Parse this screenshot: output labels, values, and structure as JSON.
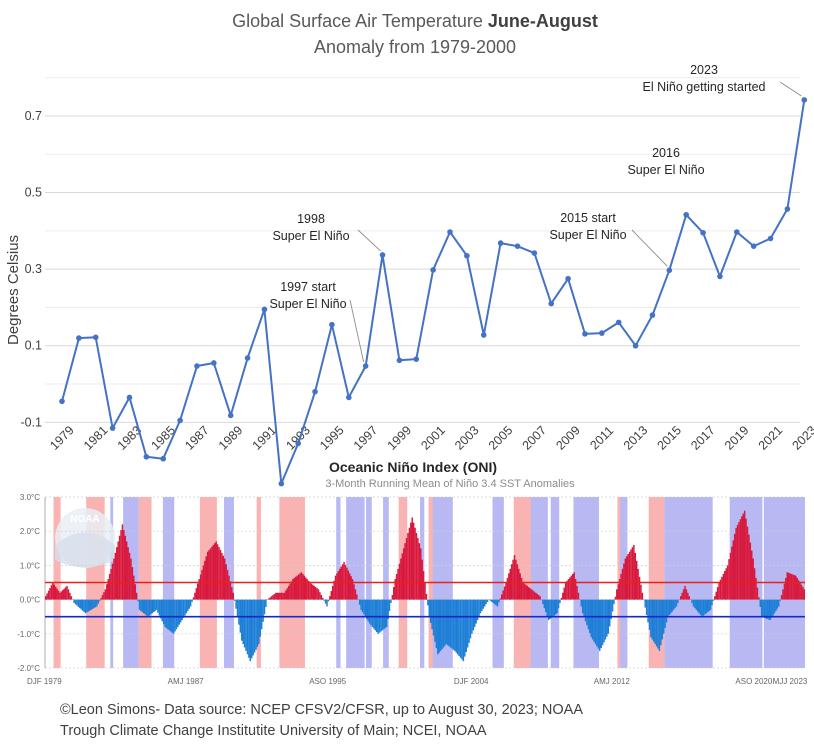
{
  "chart_data": [
    {
      "type": "line",
      "title_prefix": "Global Surface Air Temperature ",
      "title_bold": "June-August",
      "subtitle": "Anomaly from 1979-2000",
      "ylabel": "Degrees Celsius",
      "xlabel": "",
      "ylim": [
        -0.12,
        0.82
      ],
      "yticks": [
        -0.1,
        0.1,
        0.3,
        0.5,
        0.7
      ],
      "ytick_labels": [
        "-0.1",
        "0.1",
        "0.3",
        "0.5",
        "0.7"
      ],
      "xtick_labels": [
        "1979",
        "1981",
        "1983",
        "1985",
        "1987",
        "1989",
        "1991",
        "1993",
        "1995",
        "1997",
        "1999",
        "2001",
        "2003",
        "2005",
        "2007",
        "2009",
        "2011",
        "2013",
        "2015",
        "2017",
        "2019",
        "2021",
        "2023"
      ],
      "grid": true,
      "color": "#4472c4",
      "x": [
        1979,
        1980,
        1981,
        1982,
        1983,
        1984,
        1985,
        1986,
        1987,
        1988,
        1989,
        1990,
        1991,
        1992,
        1993,
        1994,
        1995,
        1996,
        1997,
        1998,
        1999,
        2000,
        2001,
        2002,
        2003,
        2004,
        2005,
        2006,
        2007,
        2008,
        2009,
        2010,
        2011,
        2012,
        2013,
        2014,
        2015,
        2016,
        2017,
        2018,
        2019,
        2020,
        2021,
        2022,
        2023
      ],
      "values": [
        -0.045,
        0.12,
        0.122,
        -0.115,
        -0.035,
        -0.19,
        -0.195,
        -0.095,
        0.047,
        0.055,
        -0.082,
        0.068,
        0.195,
        -0.26,
        -0.155,
        -0.02,
        0.155,
        -0.035,
        0.047,
        0.337,
        0.062,
        0.065,
        0.298,
        0.397,
        0.335,
        0.128,
        0.368,
        0.36,
        0.342,
        0.21,
        0.275,
        0.131,
        0.133,
        0.161,
        0.1,
        0.18,
        0.297,
        0.442,
        0.395,
        0.281,
        0.397,
        0.36,
        0.38,
        0.457,
        0.742
      ],
      "annotations": [
        {
          "lines": [
            "2023",
            "El Niño getting started"
          ],
          "year": 2023
        },
        {
          "lines": [
            "2016",
            "Super El Niño"
          ],
          "year": 2016
        },
        {
          "lines": [
            "2015 start",
            "Super El Niño"
          ],
          "year": 2015
        },
        {
          "lines": [
            "1998",
            "Super El Niño"
          ],
          "year": 1998
        },
        {
          "lines": [
            "1997 start",
            "Super El Niño"
          ],
          "year": 1997
        }
      ]
    },
    {
      "type": "bar",
      "title": "Oceanic Niño Index (ONI)",
      "subtitle": "3-Month Running Mean of Niño 3.4 SST Anomalies",
      "ylim": [
        -2.0,
        3.0
      ],
      "ytick_labels": [
        "3.0°C",
        "2.0°C",
        "1.0°C",
        "0.0°C",
        "-1.0°C",
        "-2.0°C"
      ],
      "yticks": [
        3,
        2,
        1,
        0,
        -1,
        -2
      ],
      "threshold_lines": [
        0.5,
        -0.5
      ],
      "threshold_colors": [
        "#e8211d",
        "#1528c8"
      ],
      "warm_color": "#d8183c",
      "cool_color": "#1d7fd6",
      "warm_band_color": "#f9b3b3",
      "cool_band_color": "#b8b8f3",
      "xtick_labels": [
        "DJF 1979",
        "AMJ 1987",
        "ASO 1995",
        "DJF 2004",
        "AMJ 2012",
        "ASO 2020",
        "MJJ 2023"
      ],
      "xtick_months": [
        0,
        99,
        199,
        300,
        399,
        499,
        532
      ],
      "n_months": 535,
      "logo_text": "NOAA",
      "knots": [
        [
          0,
          0.1
        ],
        [
          5,
          0.5
        ],
        [
          10,
          0.2
        ],
        [
          15,
          0.4
        ],
        [
          20,
          -0.1
        ],
        [
          28,
          -0.4
        ],
        [
          36,
          -0.2
        ],
        [
          42,
          0.3
        ],
        [
          48,
          1.2
        ],
        [
          54,
          2.2
        ],
        [
          60,
          1.2
        ],
        [
          66,
          -0.3
        ],
        [
          72,
          -0.5
        ],
        [
          78,
          -0.3
        ],
        [
          84,
          -0.8
        ],
        [
          90,
          -1.0
        ],
        [
          96,
          -0.6
        ],
        [
          102,
          -0.2
        ],
        [
          108,
          0.6
        ],
        [
          114,
          1.4
        ],
        [
          120,
          1.7
        ],
        [
          126,
          1.2
        ],
        [
          132,
          0.2
        ],
        [
          138,
          -1.2
        ],
        [
          144,
          -1.8
        ],
        [
          150,
          -1.3
        ],
        [
          156,
          0.0
        ],
        [
          162,
          0.2
        ],
        [
          168,
          0.2
        ],
        [
          174,
          0.6
        ],
        [
          180,
          0.8
        ],
        [
          186,
          0.5
        ],
        [
          192,
          0.3
        ],
        [
          198,
          -0.2
        ],
        [
          204,
          0.7
        ],
        [
          210,
          1.1
        ],
        [
          216,
          0.6
        ],
        [
          222,
          -0.3
        ],
        [
          228,
          -0.7
        ],
        [
          234,
          -1.0
        ],
        [
          240,
          -0.8
        ],
        [
          246,
          0.6
        ],
        [
          252,
          1.5
        ],
        [
          258,
          2.4
        ],
        [
          264,
          1.5
        ],
        [
          270,
          -0.5
        ],
        [
          276,
          -1.6
        ],
        [
          282,
          -1.3
        ],
        [
          288,
          -1.5
        ],
        [
          294,
          -1.8
        ],
        [
          300,
          -1.0
        ],
        [
          306,
          -0.4
        ],
        [
          312,
          0.0
        ],
        [
          318,
          -0.2
        ],
        [
          324,
          0.5
        ],
        [
          330,
          1.3
        ],
        [
          336,
          0.5
        ],
        [
          342,
          0.3
        ],
        [
          348,
          0.1
        ],
        [
          354,
          -0.6
        ],
        [
          360,
          -0.4
        ],
        [
          366,
          0.5
        ],
        [
          372,
          0.8
        ],
        [
          378,
          -0.4
        ],
        [
          384,
          -1.1
        ],
        [
          390,
          -1.5
        ],
        [
          396,
          -1.0
        ],
        [
          402,
          0.3
        ],
        [
          408,
          1.2
        ],
        [
          414,
          1.6
        ],
        [
          420,
          0.2
        ],
        [
          426,
          -1.1
        ],
        [
          432,
          -1.5
        ],
        [
          438,
          -0.5
        ],
        [
          444,
          -0.2
        ],
        [
          450,
          0.4
        ],
        [
          456,
          -0.2
        ],
        [
          462,
          -0.5
        ],
        [
          468,
          -0.3
        ],
        [
          474,
          0.5
        ],
        [
          480,
          1.0
        ],
        [
          486,
          2.1
        ],
        [
          492,
          2.6
        ],
        [
          498,
          1.2
        ],
        [
          504,
          -0.5
        ],
        [
          510,
          -0.6
        ],
        [
          516,
          -0.2
        ],
        [
          522,
          0.8
        ],
        [
          528,
          0.7
        ],
        [
          534,
          0.3
        ],
        [
          540,
          -0.5
        ],
        [
          546,
          -0.5
        ],
        [
          552,
          -1.0
        ],
        [
          558,
          -1.3
        ],
        [
          564,
          -0.6
        ],
        [
          570,
          -0.9
        ],
        [
          576,
          -1.0
        ],
        [
          582,
          -0.9
        ],
        [
          588,
          -0.6
        ],
        [
          594,
          -0.3
        ],
        [
          600,
          0.5
        ]
      ],
      "warm_bands": [
        [
          6,
          11
        ],
        [
          29,
          42
        ],
        [
          66,
          75
        ],
        [
          109,
          121
        ],
        [
          149,
          152
        ],
        [
          165,
          183
        ],
        [
          249,
          255
        ],
        [
          270,
          275
        ],
        [
          285,
          287
        ],
        [
          330,
          351
        ],
        [
          403,
          409
        ],
        [
          425,
          436
        ]
      ],
      "cool_bands": [
        [
          46,
          48
        ],
        [
          55,
          66
        ],
        [
          83,
          91
        ],
        [
          126,
          133
        ],
        [
          205,
          208
        ],
        [
          212,
          225
        ],
        [
          226,
          230
        ],
        [
          238,
          242
        ],
        [
          264,
          267
        ],
        [
          273,
          287
        ],
        [
          315,
          323
        ],
        [
          342,
          354
        ],
        [
          356,
          362
        ],
        [
          372,
          390
        ],
        [
          405,
          410
        ],
        [
          436,
          452
        ],
        [
          450,
          470
        ],
        [
          482,
          505
        ],
        [
          506,
          535
        ]
      ]
    }
  ],
  "footer": {
    "line1": "©Leon Simons- Data source: NCEP CFSV2/CFSR, up to August 30, 2023; NOAA",
    "line2": "Trough Climate Change Institutite University of Main; NCEI, NOAA"
  }
}
